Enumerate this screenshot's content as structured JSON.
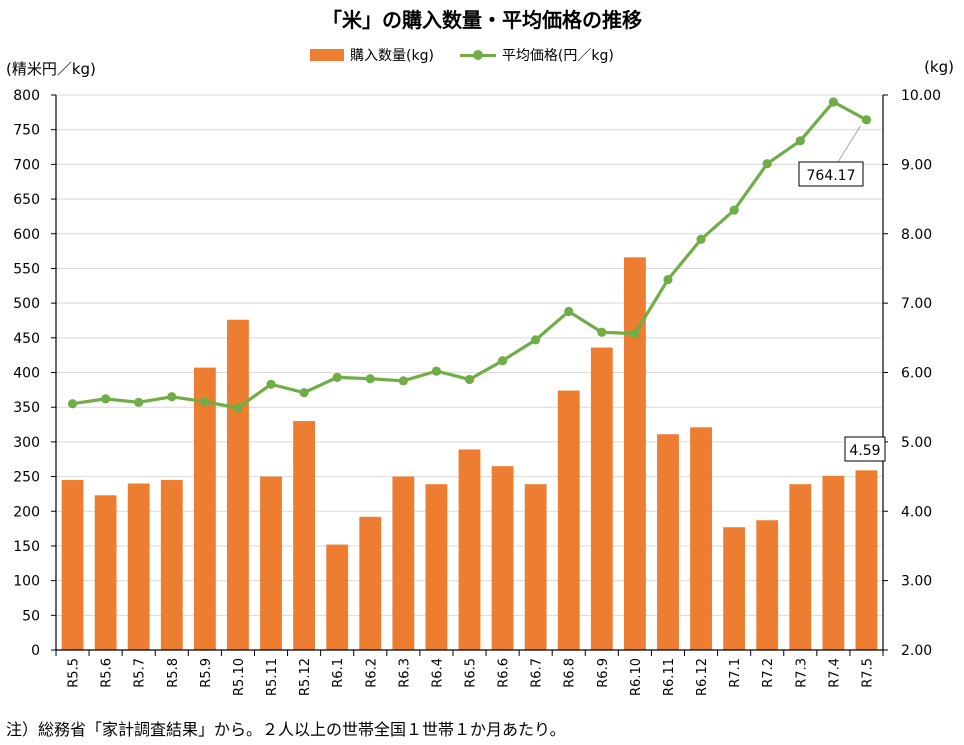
{
  "title": "「米」の購入数量・平均価格の推移",
  "footnote": "注）総務省「家計調査結果」から。２人以上の世帯全国１世帯１か月あたり。",
  "colors": {
    "bar": "#ED7D31",
    "line": "#70AD47",
    "grid": "#D9D9D9",
    "axis": "#000000"
  },
  "chart_data": {
    "type": "bar+line",
    "title": "「米」の購入数量・平均価格の推移",
    "left_axis_label": "(精米円／kg)",
    "right_axis_label": "(kg)",
    "left_ylim": [
      0,
      800
    ],
    "left_ticks": [
      "0",
      "50",
      "100",
      "150",
      "200",
      "250",
      "300",
      "350",
      "400",
      "450",
      "500",
      "550",
      "600",
      "650",
      "700",
      "750",
      "800"
    ],
    "right_ylim": [
      2.0,
      10.0
    ],
    "right_ticks": [
      "2.00",
      "3.00",
      "4.00",
      "5.00",
      "6.00",
      "7.00",
      "8.00",
      "9.00",
      "10.00"
    ],
    "grid": true,
    "legend_position": "top-center",
    "categories": [
      "R5.5",
      "R5.6",
      "R5.7",
      "R5.8",
      "R5.9",
      "R5.10",
      "R5.11",
      "R5.12",
      "R6.1",
      "R6.2",
      "R6.3",
      "R6.4",
      "R6.5",
      "R6.6",
      "R6.7",
      "R6.8",
      "R6.9",
      "R6.10",
      "R6.11",
      "R6.12",
      "R7.1",
      "R7.2",
      "R7.3",
      "R7.4",
      "R7.5"
    ],
    "series": [
      {
        "name": "購入数量(kg)",
        "type": "bar",
        "axis": "right",
        "values": [
          4.45,
          4.23,
          4.4,
          4.45,
          6.07,
          6.76,
          4.5,
          5.3,
          3.52,
          3.92,
          4.5,
          4.39,
          4.89,
          4.65,
          4.39,
          5.74,
          6.36,
          7.66,
          5.11,
          5.21,
          3.77,
          3.87,
          4.39,
          4.51,
          4.59
        ]
      },
      {
        "name": "平均価格(円／kg)",
        "type": "line",
        "axis": "left",
        "values": [
          355,
          362,
          357,
          365,
          358,
          349,
          383,
          371,
          393,
          391,
          388,
          402,
          390,
          417,
          447,
          488,
          458,
          456,
          534,
          592,
          634,
          701,
          734,
          790,
          764.17
        ]
      }
    ],
    "annotations": [
      {
        "series": "平均価格(円／kg)",
        "category": "R7.5",
        "text": "764.17"
      },
      {
        "series": "購入数量(kg)",
        "category": "R7.5",
        "text": "4.59"
      }
    ]
  }
}
